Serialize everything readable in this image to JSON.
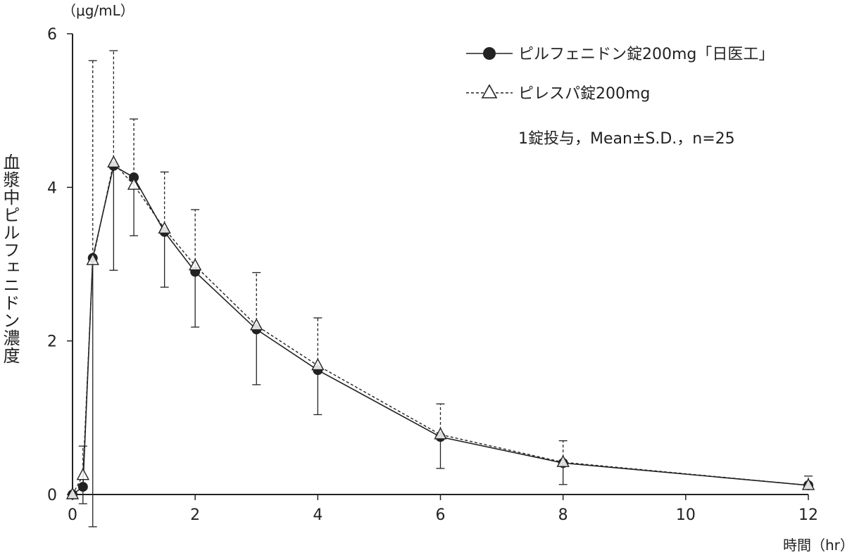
{
  "chart_data": {
    "type": "line",
    "y_unit": "（μg/mL）",
    "ylabel": "血漿中ピルフェニドン濃度",
    "xlabel": "時間（hr）",
    "x_ticks": [
      "0",
      "2",
      "4",
      "6",
      "8",
      "10",
      "12"
    ],
    "y_ticks": [
      "0",
      "2",
      "4",
      "6"
    ],
    "xlim": [
      0,
      12
    ],
    "ylim": [
      0,
      6
    ],
    "note": "1錠投与，Mean±S.D.，n=25",
    "legend_position": "top-right",
    "series": [
      {
        "name": "ピルフェニドン錠200mg「日医工」",
        "marker": "filled-circle",
        "line": "solid",
        "x": [
          0,
          0.17,
          0.33,
          0.67,
          1,
          1.5,
          2,
          3,
          4,
          6,
          8,
          12
        ],
        "y": [
          0.0,
          0.1,
          3.08,
          4.28,
          4.13,
          3.42,
          2.9,
          2.15,
          1.62,
          0.75,
          0.41,
          0.12
        ],
        "err_lo": [
          0.0,
          0.22,
          3.5,
          1.36,
          0.76,
          0.72,
          0.72,
          0.72,
          0.58,
          0.41,
          0.28,
          0.02
        ],
        "err_dir": "down"
      },
      {
        "name": "ピレスパ錠200mg",
        "marker": "open-triangle",
        "line": "dashed",
        "x": [
          0,
          0.17,
          0.33,
          0.67,
          1,
          1.5,
          2,
          3,
          4,
          6,
          8,
          12
        ],
        "y": [
          0.0,
          0.25,
          3.05,
          4.32,
          4.03,
          3.46,
          2.98,
          2.2,
          1.68,
          0.78,
          0.42,
          0.12
        ],
        "err_hi": [
          0.0,
          0.38,
          2.6,
          1.46,
          0.86,
          0.74,
          0.73,
          0.69,
          0.62,
          0.4,
          0.28,
          0.12
        ],
        "err_dir": "up"
      }
    ]
  }
}
